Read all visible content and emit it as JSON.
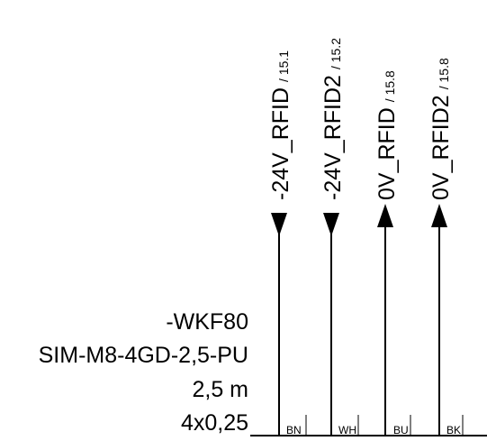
{
  "signals": [
    {
      "name": "24V_RFID",
      "ref": "/ 15.1",
      "prefix": "-",
      "direction": "down",
      "color_code": "BN"
    },
    {
      "name": "24V_RFID2",
      "ref": "/ 15.2",
      "prefix": "-",
      "direction": "down",
      "color_code": "WH"
    },
    {
      "name": "0V_RFID",
      "ref": "/ 15.8",
      "prefix": "",
      "direction": "up",
      "color_code": "BU"
    },
    {
      "name": "0V_RFID2",
      "ref": "/ 15.8",
      "prefix": "",
      "direction": "up",
      "color_code": "BK"
    }
  ],
  "cable": {
    "tag": "-WKF80",
    "type": "SIM-M8-4GD-2,5-PU",
    "length": "2,5 m",
    "cross_section": "4x0,25"
  },
  "colors": {
    "line": "#000000",
    "background": "#ffffff"
  }
}
